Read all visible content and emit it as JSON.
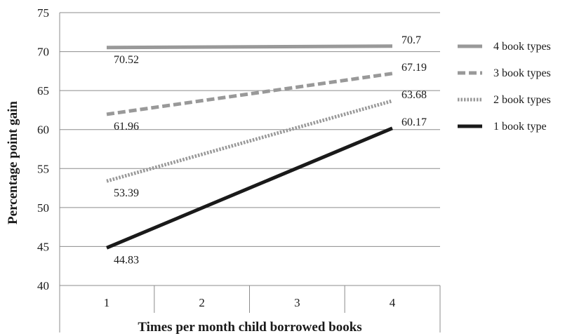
{
  "chart_data": {
    "type": "line",
    "x": [
      1,
      2,
      3,
      4
    ],
    "x_tick_labels": [
      "1",
      "2",
      "3",
      "4"
    ],
    "xlabel": "Times per month child borrowed books",
    "ylabel": "Percentage point gain",
    "ylim": [
      40,
      75
    ],
    "y_ticks": [
      40,
      45,
      50,
      55,
      60,
      65,
      70,
      75
    ],
    "grid": "horizontal",
    "legend_position": "right",
    "series": [
      {
        "name": "4 book types",
        "start": 70.52,
        "end": 70.7,
        "color": "#999999",
        "style": "solid",
        "start_label": "70.52",
        "end_label": "70.7"
      },
      {
        "name": "3 book types",
        "start": 61.96,
        "end": 67.19,
        "color": "#999999",
        "style": "dashed",
        "start_label": "61.96",
        "end_label": "67.19"
      },
      {
        "name": "2 book types",
        "start": 53.39,
        "end": 63.68,
        "color": "#999999",
        "style": "dotted",
        "start_label": "53.39",
        "end_label": "63.68"
      },
      {
        "name": "1 book type",
        "start": 44.83,
        "end": 60.17,
        "color": "#1a1a1a",
        "style": "solid",
        "start_label": "44.83",
        "end_label": "60.17"
      }
    ]
  }
}
